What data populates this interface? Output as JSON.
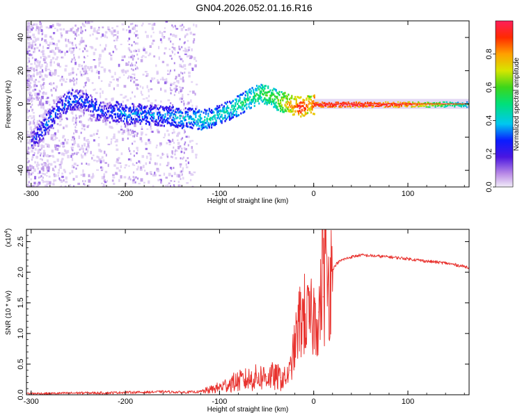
{
  "title": "GN04.2026.052.01.16.R16",
  "chart_data": [
    {
      "type": "heatmap",
      "name": "spectrogram",
      "xlabel": "Height of straight line (km)",
      "ylabel": "Frequency (Hz)",
      "xlim": [
        -305,
        165
      ],
      "ylim": [
        -50,
        50
      ],
      "xticks": [
        -300,
        -200,
        -100,
        0,
        100
      ],
      "xtick_labels": [
        "-300",
        "-200",
        "-100",
        "0",
        "100"
      ],
      "yticks": [
        -40,
        -20,
        0,
        20,
        40
      ],
      "ytick_labels": [
        "-40",
        "-20",
        "0",
        "20",
        "40"
      ],
      "ridge": {
        "description": "dominant frequency track vs height",
        "x": [
          -300,
          -290,
          -280,
          -270,
          -260,
          -250,
          -240,
          -230,
          -220,
          -210,
          -200,
          -190,
          -180,
          -170,
          -160,
          -150,
          -140,
          -130,
          -120,
          -110,
          -100,
          -90,
          -80,
          -70,
          -60,
          -55,
          -50,
          -45,
          -40,
          -35,
          -30,
          -25,
          -20,
          -15,
          -10,
          -5,
          0,
          20,
          40,
          60,
          80,
          100,
          120,
          140,
          165
        ],
        "y": [
          -22,
          -16,
          -8,
          -2,
          3,
          3,
          1,
          -3,
          -5,
          -4,
          -6,
          -5,
          -6,
          -6,
          -7,
          -7,
          -8,
          -8,
          -9,
          -8,
          -6,
          -3,
          0,
          3,
          6,
          7,
          6,
          5,
          3,
          2,
          1,
          0,
          -1,
          -1,
          -1,
          0,
          0,
          0,
          0,
          0,
          0,
          0,
          0,
          0,
          0
        ],
        "amplitude": [
          0.25,
          0.3,
          0.35,
          0.3,
          0.35,
          0.3,
          0.3,
          0.3,
          0.25,
          0.35,
          0.35,
          0.35,
          0.35,
          0.35,
          0.35,
          0.4,
          0.4,
          0.4,
          0.45,
          0.45,
          0.45,
          0.45,
          0.5,
          0.5,
          0.55,
          0.55,
          0.6,
          0.6,
          0.6,
          0.7,
          0.75,
          0.8,
          0.85,
          0.95,
          0.9,
          0.8,
          0.95,
          1.0,
          1.0,
          0.98,
          0.95,
          0.9,
          0.75,
          0.6,
          0.5
        ]
      },
      "colorbar": {
        "label": "Normalized spectral amplitude",
        "range": [
          0,
          1
        ],
        "ticks": [
          0.0,
          0.2,
          0.4,
          0.6,
          0.8
        ],
        "tick_labels": [
          "0.0",
          "0.2",
          "0.4",
          "0.6",
          "0.8"
        ]
      }
    },
    {
      "type": "line",
      "name": "snr",
      "xlabel": "Height of straight line (km)",
      "ylabel": "SNR (10 * v/v)",
      "multiplier_label": "(x10",
      "multiplier_exp": "4",
      "multiplier_close": ")",
      "xlim": [
        -305,
        165
      ],
      "ylim": [
        0,
        2.7
      ],
      "xticks": [
        -300,
        -200,
        -100,
        0,
        100
      ],
      "xtick_labels": [
        "-300",
        "-200",
        "-100",
        "0",
        "100"
      ],
      "yticks": [
        0.0,
        0.5,
        1.0,
        1.5,
        2.0,
        2.5
      ],
      "ytick_labels": [
        "0.0",
        "0.5",
        "1.0",
        "1.5",
        "2.0",
        "2.5"
      ],
      "series": [
        {
          "name": "SNR",
          "color": "#e8322e",
          "x": [
            -305,
            -280,
            -250,
            -220,
            -200,
            -180,
            -160,
            -140,
            -120,
            -110,
            -100,
            -90,
            -80,
            -70,
            -60,
            -50,
            -45,
            -40,
            -35,
            -30,
            -25,
            -20,
            -15,
            -10,
            -5,
            0,
            5,
            10,
            15,
            20,
            25,
            30,
            40,
            50,
            60,
            80,
            100,
            120,
            140,
            165
          ],
          "y": [
            0.02,
            0.02,
            0.03,
            0.03,
            0.04,
            0.04,
            0.05,
            0.04,
            0.05,
            0.08,
            0.12,
            0.18,
            0.22,
            0.25,
            0.28,
            0.3,
            0.3,
            0.28,
            0.28,
            0.25,
            0.4,
            0.8,
            1.2,
            1.3,
            1.2,
            1.25,
            1.35,
            1.6,
            1.8,
            2.05,
            2.15,
            2.2,
            2.25,
            2.28,
            2.27,
            2.25,
            2.22,
            2.18,
            2.15,
            2.08
          ]
        }
      ]
    }
  ],
  "colors": {
    "axis": "#000000",
    "line": "#e8322e"
  }
}
